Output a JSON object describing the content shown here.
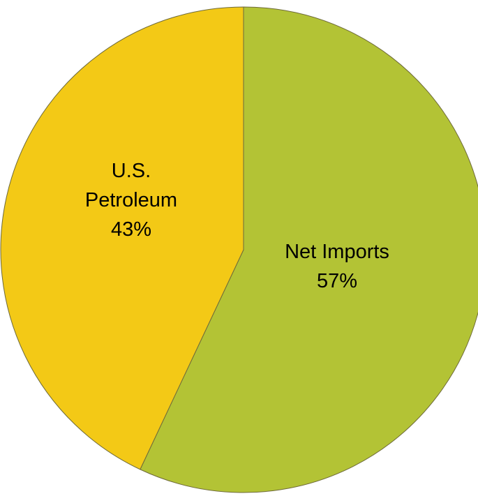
{
  "chart_data": {
    "type": "pie",
    "title": "",
    "start_angle_deg": 0,
    "direction": "clockwise",
    "slices": [
      {
        "name": "Net Imports",
        "value": 57,
        "label": "57%",
        "color": "#b3c335"
      },
      {
        "name": "U.S. Petroleum",
        "value": 43,
        "label": "43%",
        "color": "#f3c916"
      }
    ],
    "labels": [
      {
        "lines": [
          "Net Imports",
          "57%"
        ]
      },
      {
        "lines": [
          "U.S.",
          "Petroleum",
          "43%"
        ]
      }
    ],
    "legend": "none"
  }
}
